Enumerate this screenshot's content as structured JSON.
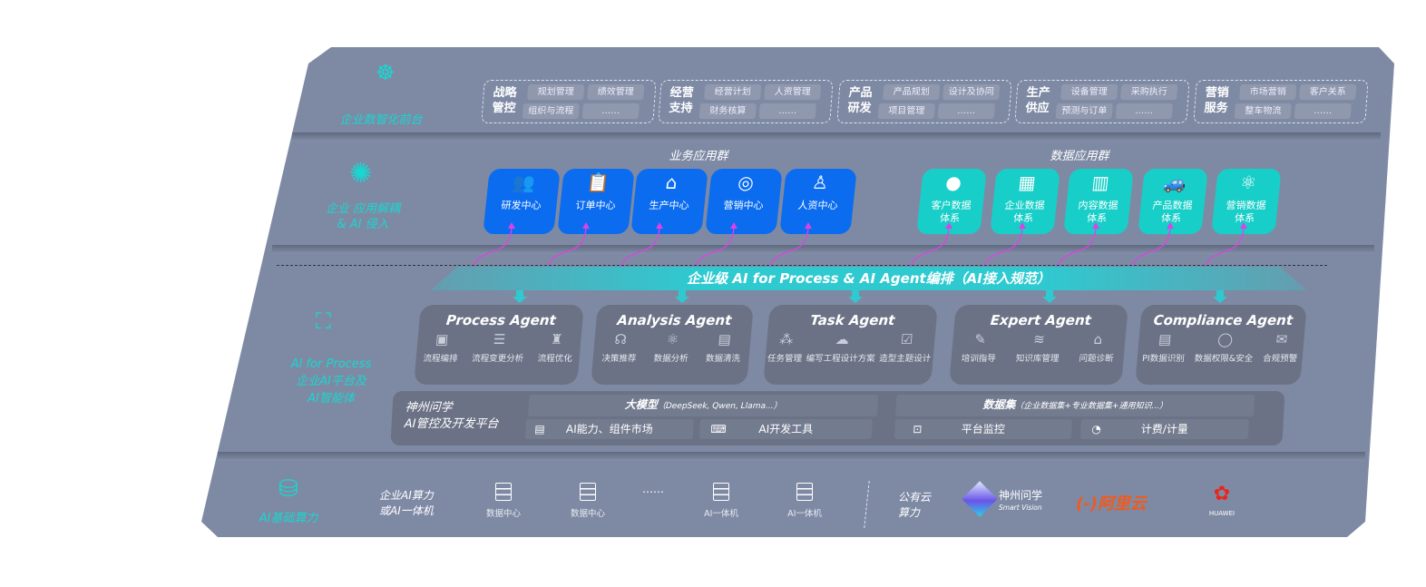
{
  "layers": {
    "front": {
      "label": "企业数智化前台",
      "icon": "brain-icon",
      "groups": [
        {
          "title": "战略管控",
          "items": [
            "规划管理",
            "绩效管理",
            "组织与流程",
            "……"
          ]
        },
        {
          "title": "经营支持",
          "items": [
            "经营计划",
            "人资管理",
            "财务核算",
            "……"
          ]
        },
        {
          "title": "产品研发",
          "items": [
            "产品规划",
            "设计及协同",
            "项目管理",
            "……"
          ]
        },
        {
          "title": "生产供应",
          "items": [
            "设备管理",
            "采购执行",
            "预测与订单",
            "……"
          ]
        },
        {
          "title": "营销服务",
          "items": [
            "市场营销",
            "客户关系",
            "整车物流",
            "……"
          ]
        }
      ]
    },
    "apps": {
      "label_line1": "企业 应用解耦",
      "label_line2": "& AI 侵入",
      "icon": "molecule-icon",
      "business_title": "业务应用群",
      "business": [
        {
          "label": "研发中心",
          "icon": "team-icon"
        },
        {
          "label": "订单中心",
          "icon": "clipboard-icon"
        },
        {
          "label": "生产中心",
          "icon": "factory-icon"
        },
        {
          "label": "营销中心",
          "icon": "target-icon"
        },
        {
          "label": "人资中心",
          "icon": "person-icon"
        }
      ],
      "data_title": "数据应用群",
      "data": [
        {
          "label": "客户数据体系",
          "icon": "user-icon"
        },
        {
          "label": "企业数据体系",
          "icon": "building-icon"
        },
        {
          "label": "内容数据体系",
          "icon": "books-icon"
        },
        {
          "label": "产品数据体系",
          "icon": "car-icon"
        },
        {
          "label": "营销数据体系",
          "icon": "atom-icon"
        }
      ]
    },
    "ai": {
      "label_line1": "AI for Process",
      "label_line2": "企业AI平台及",
      "label_line3": "AI智能体",
      "icon": "face-scan-icon",
      "banner": "企业级 AI for Process & AI Agent编排（AI接入规范）",
      "agents": [
        {
          "title": "Process Agent",
          "items": [
            "流程编排",
            "流程变更分析",
            "流程优化"
          ]
        },
        {
          "title": "Analysis Agent",
          "items": [
            "决策推荐",
            "数据分析",
            "数据清洗"
          ]
        },
        {
          "title": "Task Agent",
          "items": [
            "任务管理",
            "编写工程设计方案",
            "造型主题设计"
          ]
        },
        {
          "title": "Expert Agent",
          "items": [
            "培训指导",
            "知识库管理",
            "问题诊断"
          ]
        },
        {
          "title": "Compliance Agent",
          "items": [
            "PI数据识别",
            "数据权限&安全",
            "合规预警"
          ]
        }
      ],
      "platform": {
        "name_line1": "神州问学",
        "name_line2": "AI管控及开发平台",
        "llm": "大模型",
        "llm_note": "（DeepSeek, Qwen, Llama...）",
        "dataset": "数据集",
        "dataset_note": "（企业数据集+专业数据集+通用知识...）",
        "tools": [
          "AI能力、组件市场",
          "AI开发工具",
          "平台监控",
          "计费/计量"
        ]
      }
    },
    "compute": {
      "label": "AI基础算力",
      "icon": "database-icon",
      "private_label_line1": "企业AI算力",
      "private_label_line2": "或AI一体机",
      "servers": [
        "数据中心",
        "数据中心",
        "AI一体机",
        "AI一体机"
      ],
      "ellipsis": "……",
      "public_label_line1": "公有云",
      "public_label_line2": "算力",
      "vendors": [
        {
          "name": "神州问学",
          "sub": "Smart Vision"
        },
        {
          "name": "阿里云"
        },
        {
          "name": "HUAWEI"
        }
      ]
    }
  },
  "colors": {
    "panel": "#7e8aa4",
    "business": "#0b6cf0",
    "data": "#17cfc8",
    "accent": "#19d6d0",
    "arrow": "#e040e6",
    "aliyun": "#f05a1e",
    "huawei": "#e8271c"
  }
}
